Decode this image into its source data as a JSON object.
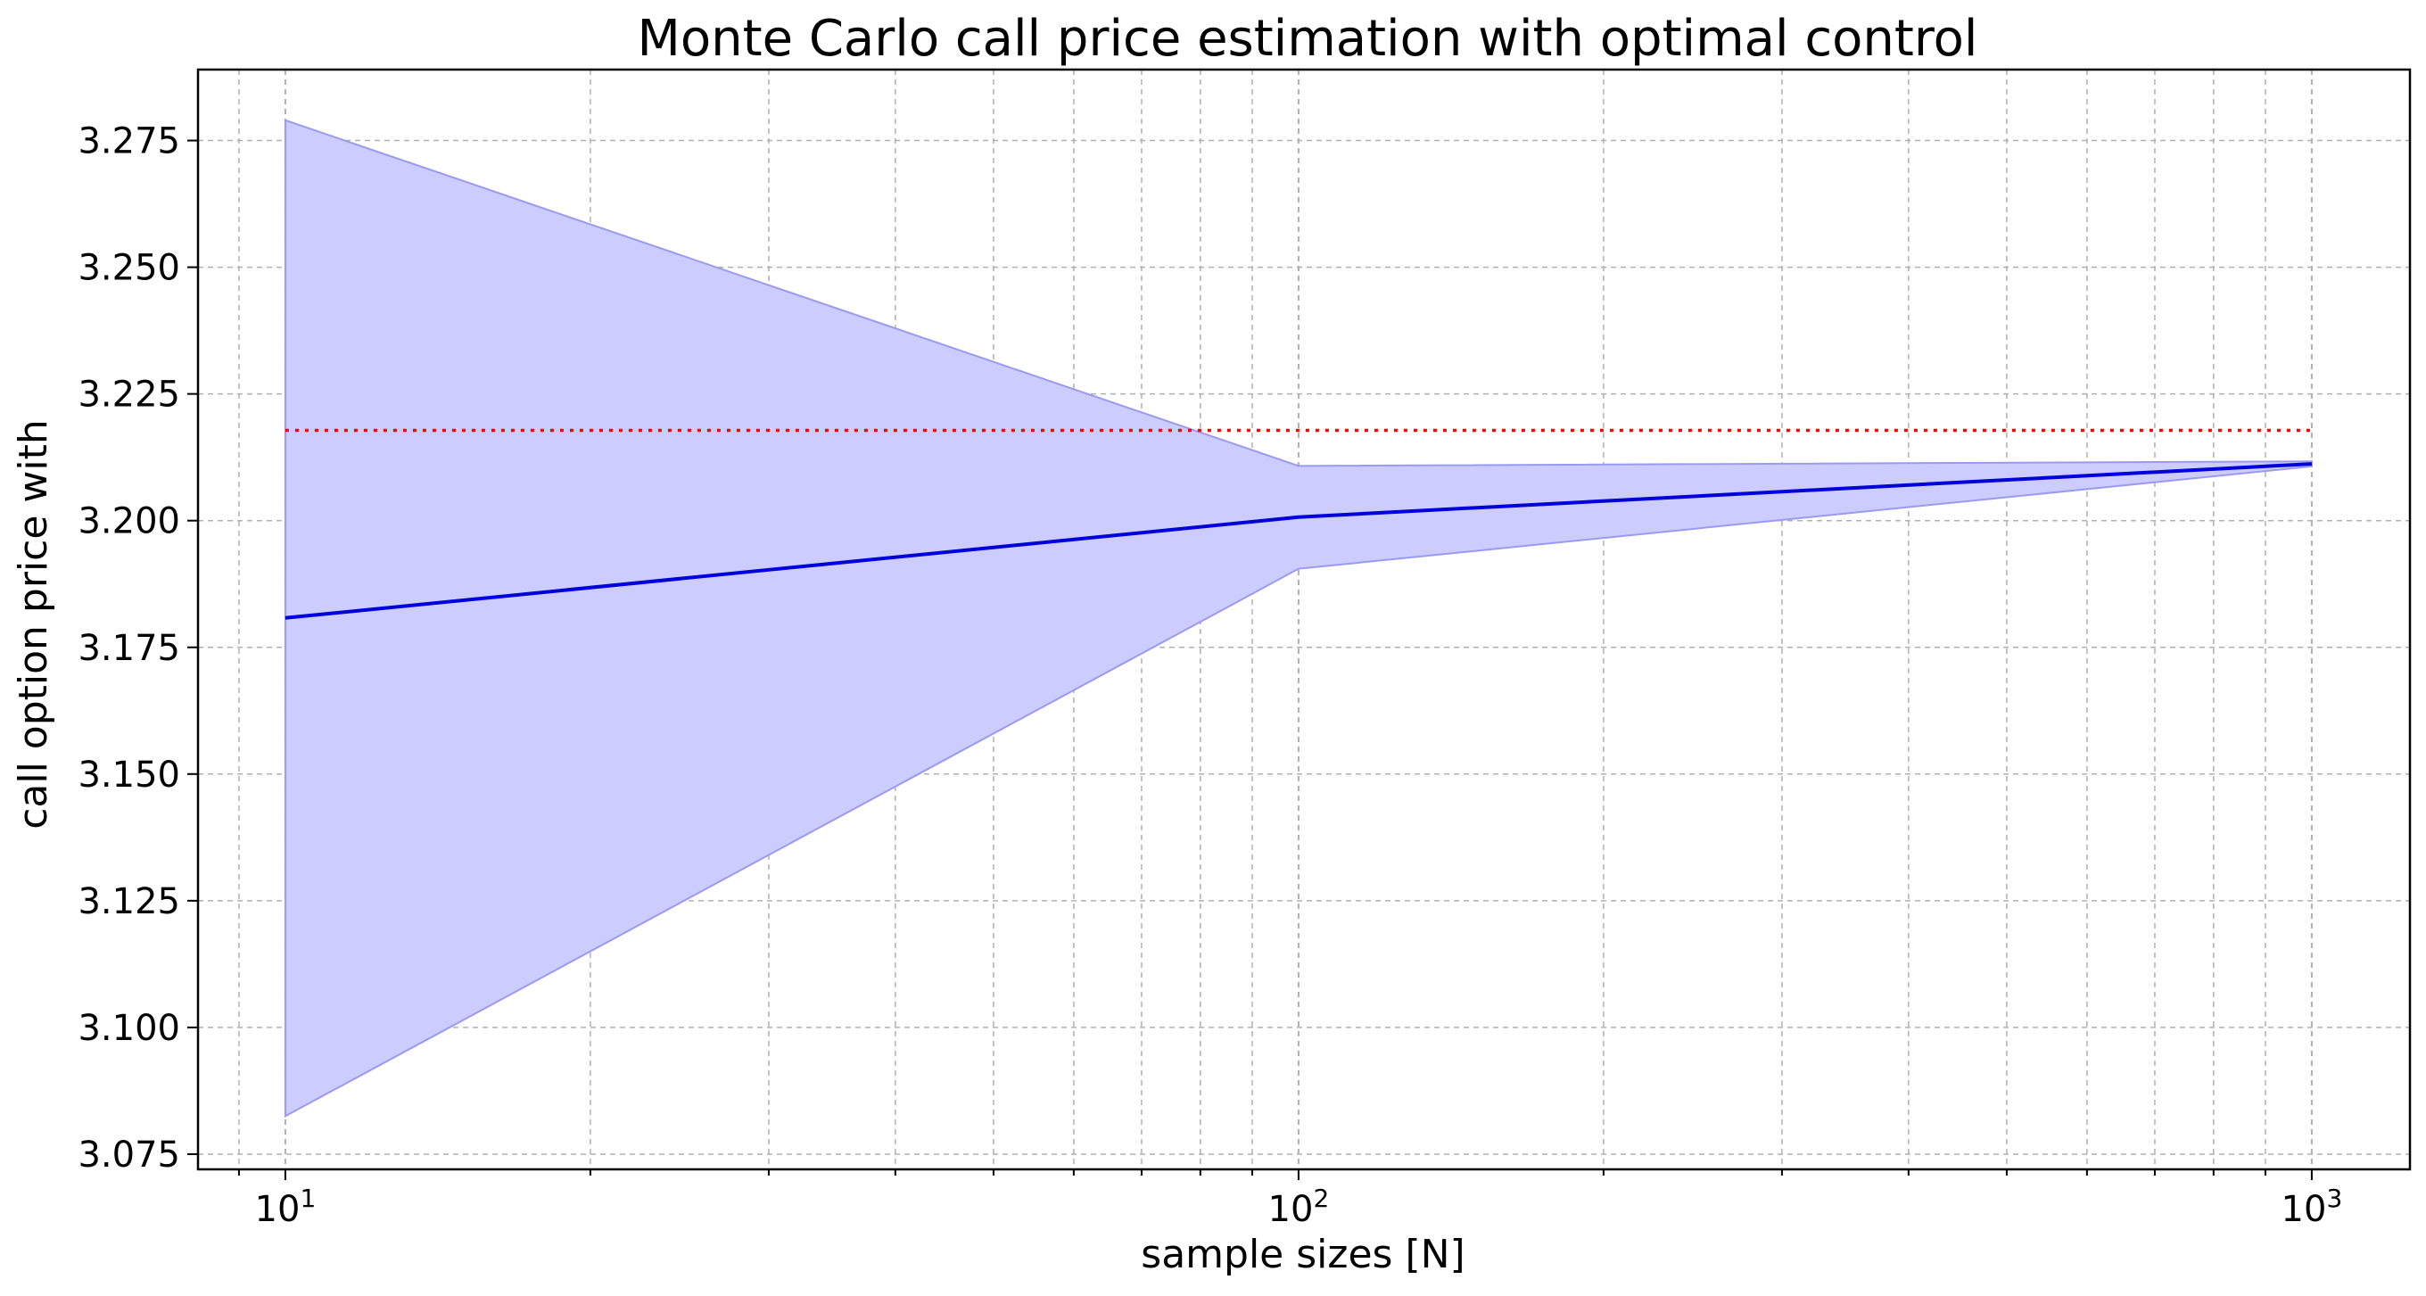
{
  "chart_data": {
    "type": "line",
    "title": "Monte Carlo call price estimation with optimal control",
    "xlabel": "sample sizes [N]",
    "ylabel": "call option price with",
    "xscale": "log",
    "xlim": [
      8.2,
      1250
    ],
    "ylim": [
      3.072,
      3.289
    ],
    "grid": true,
    "grid_style": "dashed",
    "x_ticks": [
      {
        "value": 10,
        "base": "10",
        "exp": "1"
      },
      {
        "value": 100,
        "base": "10",
        "exp": "2"
      },
      {
        "value": 1000,
        "base": "10",
        "exp": "3"
      }
    ],
    "y_ticks": [
      {
        "value": 3.075,
        "label": "3.075"
      },
      {
        "value": 3.1,
        "label": "3.100"
      },
      {
        "value": 3.125,
        "label": "3.125"
      },
      {
        "value": 3.15,
        "label": "3.150"
      },
      {
        "value": 3.175,
        "label": "3.175"
      },
      {
        "value": 3.2,
        "label": "3.200"
      },
      {
        "value": 3.225,
        "label": "3.225"
      },
      {
        "value": 3.25,
        "label": "3.250"
      },
      {
        "value": 3.275,
        "label": "3.275"
      }
    ],
    "x": [
      10,
      100,
      1000
    ],
    "series": [
      {
        "values": [
          3.1808,
          3.2007,
          3.2112
        ],
        "color": "#0000dd",
        "style": "solid"
      }
    ],
    "band": {
      "lower": [
        3.0825,
        3.1905,
        3.2107
      ],
      "upper": [
        3.279,
        3.2108,
        3.2117
      ],
      "color": "#ccccff",
      "edge_color": "#9a9af0"
    },
    "reference_line": {
      "value": 3.2178,
      "x_range": [
        10,
        1000
      ],
      "color": "#ff0000",
      "style": "dotted"
    }
  }
}
